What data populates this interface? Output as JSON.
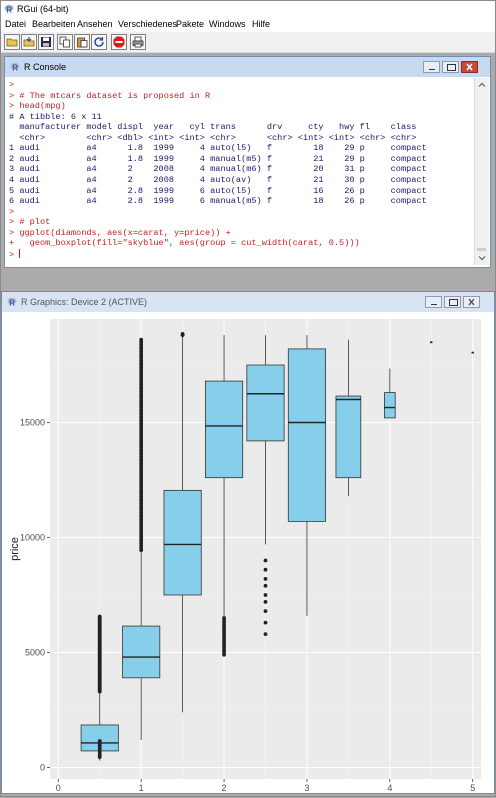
{
  "app": {
    "title": "RGui (64-bit)"
  },
  "menu": [
    "Datei",
    "Bearbeiten",
    "Ansehen",
    "Verschiedenes",
    "Pakete",
    "Windows",
    "Hilfe"
  ],
  "toolbar": [
    "open-script",
    "load-workspace",
    "save-workspace",
    "copy",
    "paste",
    "copy-paste",
    "stop",
    "print"
  ],
  "console": {
    "title": "R Console",
    "lines": [
      {
        "text": ">",
        "color": "red"
      },
      {
        "text": "> # The mtcars dataset is proposed in R",
        "color": "red"
      },
      {
        "text": "> head(mpg)",
        "color": "red"
      },
      {
        "text": "# A tibble: 6 x 11",
        "color": "blue"
      },
      {
        "text": "  manufacturer model displ  year   cyl trans      drv     cty   hwy fl    class",
        "color": "blue"
      },
      {
        "text": "  <chr>        <chr> <dbl> <int> <int> <chr>      <chr> <int> <int> <chr> <chr>",
        "color": "blue"
      },
      {
        "text": "1 audi         a4      1.8  1999     4 auto(l5)   f        18    29 p     compact",
        "color": "blue"
      },
      {
        "text": "2 audi         a4      1.8  1999     4 manual(m5) f        21    29 p     compact",
        "color": "blue"
      },
      {
        "text": "3 audi         a4      2    2008     4 manual(m6) f        20    31 p     compact",
        "color": "blue"
      },
      {
        "text": "4 audi         a4      2    2008     4 auto(av)   f        21    30 p     compact",
        "color": "blue"
      },
      {
        "text": "5 audi         a4      2.8  1999     6 auto(l5)   f        16    26 p     compact",
        "color": "blue"
      },
      {
        "text": "6 audi         a4      2.8  1999     6 manual(m5) f        18    26 p     compact",
        "color": "blue"
      },
      {
        "text": ">",
        "color": "red"
      },
      {
        "text": "> # plot",
        "color": "red"
      },
      {
        "text": "> ggplot(diamonds, aes(x=carat, y=price)) +",
        "color": "red"
      },
      {
        "text": "+   geom_boxplot(fill=\"skyblue\", aes(group = cut_width(carat, 0.5)))",
        "color": "red"
      },
      {
        "text": "> ",
        "color": "red",
        "cursor": true
      }
    ]
  },
  "graphics": {
    "title": "R Graphics: Device 2 (ACTIVE)"
  },
  "chart_data": {
    "type": "boxplot",
    "xlabel": "carat",
    "ylabel": "price",
    "xlim": [
      -0.1,
      5.1
    ],
    "ylim": [
      -500,
      19500
    ],
    "xticks": [
      0,
      1,
      2,
      3,
      4,
      5
    ],
    "yticks": [
      0,
      5000,
      10000,
      15000
    ],
    "fill": "#87ceeb",
    "panel_background": "#ebebeb",
    "grid": true,
    "boxes": [
      {
        "x": 0.5,
        "width": 0.45,
        "lower_whisker": 300,
        "q1": 720,
        "median": 1070,
        "q3": 1850,
        "upper_whisker": 3300,
        "outliers_low": [
          450,
          500,
          560,
          650,
          750,
          850,
          950,
          1050,
          1150
        ],
        "outliers_high_range": [
          3300,
          6600
        ]
      },
      {
        "x": 1.0,
        "width": 0.45,
        "lower_whisker": 1200,
        "q1": 3900,
        "median": 4800,
        "q3": 6150,
        "upper_whisker": 9450,
        "outliers_high_range": [
          9450,
          18600
        ]
      },
      {
        "x": 1.5,
        "width": 0.45,
        "lower_whisker": 2400,
        "q1": 7500,
        "median": 9700,
        "q3": 12050,
        "upper_whisker": 18800,
        "outliers_high": [
          18800,
          18850
        ]
      },
      {
        "x": 2.0,
        "width": 0.45,
        "lower_whisker": 4900,
        "q1": 12600,
        "median": 14850,
        "q3": 16800,
        "upper_whisker": 18800,
        "outliers_low_range": [
          4900,
          6500
        ]
      },
      {
        "x": 2.5,
        "width": 0.45,
        "lower_whisker": 9700,
        "q1": 14200,
        "median": 16250,
        "q3": 17500,
        "upper_whisker": 18800,
        "outliers_low": [
          5800,
          6300,
          6800,
          7200,
          7500,
          7900,
          8200,
          8600,
          9000
        ]
      },
      {
        "x": 3.0,
        "width": 0.45,
        "lower_whisker": 6600,
        "q1": 10700,
        "median": 15000,
        "q3": 18200,
        "upper_whisker": 18800
      },
      {
        "x": 3.5,
        "width": 0.3,
        "lower_whisker": 11800,
        "q1": 12600,
        "median": 16000,
        "q3": 16150,
        "upper_whisker": 18600
      },
      {
        "x": 4.0,
        "width": 0.13,
        "lower_whisker": 15200,
        "q1": 15200,
        "median": 15650,
        "q3": 16300,
        "upper_whisker": 17350
      },
      {
        "x": 4.5,
        "width": 0.02,
        "lower_whisker": 18500,
        "q1": 18500,
        "median": 18500,
        "q3": 18500,
        "upper_whisker": 18500
      },
      {
        "x": 5.0,
        "width": 0.02,
        "lower_whisker": 18050,
        "q1": 18050,
        "median": 18050,
        "q3": 18050,
        "upper_whisker": 18050
      }
    ]
  }
}
